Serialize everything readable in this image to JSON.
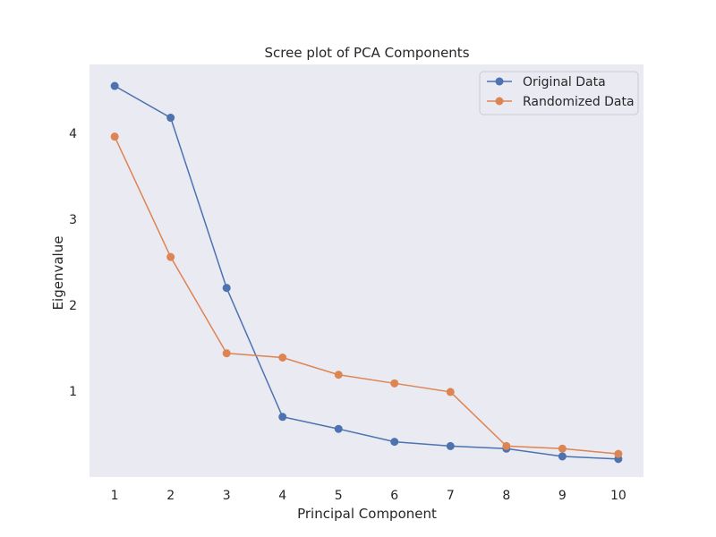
{
  "chart_data": {
    "type": "line",
    "title": "Scree plot of PCA Components",
    "xlabel": "Principal Component",
    "ylabel": "Eigenvalue",
    "x": [
      1,
      2,
      3,
      4,
      5,
      6,
      7,
      8,
      9,
      10
    ],
    "x_ticks": [
      "1",
      "2",
      "3",
      "4",
      "5",
      "6",
      "7",
      "8",
      "9",
      "10"
    ],
    "y_ticks": [
      1,
      2,
      3,
      4
    ],
    "y_tick_labels": [
      "1",
      "2",
      "3",
      "4"
    ],
    "xlim": [
      0.55,
      10.45
    ],
    "ylim": [
      0,
      4.8
    ],
    "grid": false,
    "legend_position": "top-right",
    "background_color": "#eaeaf2",
    "series": [
      {
        "name": "Original Data",
        "color": "#4c72b0",
        "marker": "circle",
        "values": [
          4.55,
          4.18,
          2.2,
          0.7,
          0.56,
          0.41,
          0.36,
          0.33,
          0.24,
          0.21
        ]
      },
      {
        "name": "Randomized Data",
        "color": "#dd8452",
        "marker": "circle",
        "values": [
          3.96,
          2.56,
          1.44,
          1.39,
          1.19,
          1.09,
          0.99,
          0.36,
          0.33,
          0.27
        ]
      }
    ]
  }
}
